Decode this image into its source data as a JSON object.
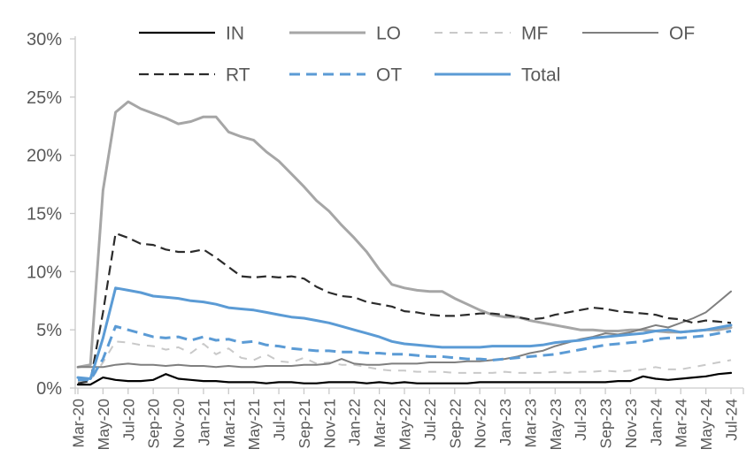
{
  "chart_data": {
    "type": "line",
    "title": "",
    "xlabel": "",
    "ylabel": "",
    "ylim": [
      0,
      30
    ],
    "ytick_labels": [
      "0%",
      "5%",
      "10%",
      "15%",
      "20%",
      "25%",
      "30%"
    ],
    "xtick_step": 2,
    "grid": false,
    "legend_position": "top",
    "colors": {
      "axis": "#c9c9c9",
      "text": "#595959"
    },
    "x": [
      "Mar-20",
      "Apr-20",
      "May-20",
      "Jun-20",
      "Jul-20",
      "Aug-20",
      "Sep-20",
      "Oct-20",
      "Nov-20",
      "Dec-20",
      "Jan-21",
      "Feb-21",
      "Mar-21",
      "Apr-21",
      "May-21",
      "Jun-21",
      "Jul-21",
      "Aug-21",
      "Sep-21",
      "Oct-21",
      "Nov-21",
      "Dec-21",
      "Jan-22",
      "Feb-22",
      "Mar-22",
      "Apr-22",
      "May-22",
      "Jun-22",
      "Jul-22",
      "Aug-22",
      "Sep-22",
      "Oct-22",
      "Nov-22",
      "Dec-22",
      "Jan-23",
      "Feb-23",
      "Mar-23",
      "Apr-23",
      "May-23",
      "Jun-23",
      "Jul-23",
      "Aug-23",
      "Sep-23",
      "Oct-23",
      "Nov-23",
      "Dec-23",
      "Jan-24",
      "Feb-24",
      "Mar-24",
      "Apr-24",
      "May-24",
      "Jun-24",
      "Jul-24"
    ],
    "series": [
      {
        "name": "IN",
        "color": "#000000",
        "width": 2.2,
        "dash": "",
        "values": [
          0.3,
          0.3,
          0.9,
          0.7,
          0.6,
          0.6,
          0.7,
          1.2,
          0.8,
          0.7,
          0.6,
          0.6,
          0.5,
          0.5,
          0.5,
          0.4,
          0.5,
          0.5,
          0.4,
          0.4,
          0.5,
          0.5,
          0.5,
          0.4,
          0.5,
          0.4,
          0.5,
          0.4,
          0.4,
          0.4,
          0.4,
          0.4,
          0.5,
          0.5,
          0.5,
          0.5,
          0.5,
          0.5,
          0.5,
          0.5,
          0.5,
          0.5,
          0.5,
          0.6,
          0.6,
          1.0,
          0.8,
          0.7,
          0.8,
          0.9,
          1.0,
          1.2,
          1.3
        ]
      },
      {
        "name": "LO",
        "color": "#a6a6a6",
        "width": 3,
        "dash": "",
        "values": [
          1.8,
          2.0,
          17.0,
          23.7,
          24.6,
          24.0,
          23.6,
          23.2,
          22.7,
          22.9,
          23.3,
          23.3,
          22.0,
          21.6,
          21.3,
          20.3,
          19.5,
          18.4,
          17.3,
          16.1,
          15.2,
          14.0,
          12.9,
          11.7,
          10.2,
          8.9,
          8.6,
          8.4,
          8.3,
          8.3,
          7.7,
          7.2,
          6.7,
          6.3,
          6.1,
          6.1,
          5.8,
          5.6,
          5.4,
          5.2,
          5.0,
          5.0,
          4.9,
          4.9,
          5.0,
          5.0,
          4.9,
          4.8,
          4.8,
          4.9,
          5.0,
          5.0,
          5.2
        ]
      },
      {
        "name": "MF",
        "color": "#c9c9c9",
        "width": 2,
        "dash": "9,8",
        "values": [
          0.6,
          0.7,
          2.2,
          4.0,
          3.9,
          3.7,
          3.6,
          3.3,
          3.5,
          3.0,
          3.8,
          2.9,
          3.4,
          2.6,
          2.4,
          2.9,
          2.3,
          2.2,
          2.6,
          2.1,
          2.2,
          2.0,
          2.0,
          1.8,
          1.6,
          1.5,
          1.5,
          1.4,
          1.4,
          1.4,
          1.3,
          1.3,
          1.3,
          1.3,
          1.4,
          1.3,
          1.3,
          1.3,
          1.4,
          1.3,
          1.4,
          1.4,
          1.5,
          1.4,
          1.5,
          1.6,
          1.8,
          1.6,
          1.6,
          1.8,
          2.0,
          2.2,
          2.4
        ]
      },
      {
        "name": "OF",
        "color": "#7f7f7f",
        "width": 2,
        "dash": "",
        "values": [
          1.8,
          1.8,
          1.8,
          2.0,
          2.1,
          2.0,
          2.0,
          1.9,
          2.0,
          1.9,
          1.9,
          1.8,
          1.9,
          1.8,
          1.8,
          1.9,
          1.9,
          1.9,
          2.0,
          2.0,
          2.1,
          2.5,
          2.1,
          2.0,
          2.0,
          2.1,
          2.1,
          2.1,
          2.2,
          2.2,
          2.2,
          2.3,
          2.3,
          2.4,
          2.5,
          2.7,
          3.0,
          3.2,
          3.6,
          3.9,
          4.2,
          4.4,
          4.7,
          4.6,
          4.8,
          5.1,
          5.4,
          5.2,
          5.6,
          6.0,
          6.5,
          7.4,
          8.3
        ]
      },
      {
        "name": "RT",
        "color": "#2b2b2b",
        "width": 2.2,
        "dash": "11,6",
        "values": [
          0.4,
          0.6,
          6.5,
          13.3,
          12.9,
          12.4,
          12.3,
          11.9,
          11.7,
          11.7,
          11.9,
          11.2,
          10.4,
          9.6,
          9.5,
          9.6,
          9.5,
          9.6,
          9.4,
          8.7,
          8.2,
          7.9,
          7.8,
          7.4,
          7.2,
          7.0,
          6.6,
          6.5,
          6.3,
          6.2,
          6.2,
          6.3,
          6.4,
          6.4,
          6.3,
          6.1,
          5.9,
          6.0,
          6.3,
          6.5,
          6.7,
          6.9,
          6.8,
          6.6,
          6.5,
          6.4,
          6.3,
          6.0,
          5.9,
          5.6,
          5.8,
          5.7,
          5.6
        ]
      },
      {
        "name": "OT",
        "color": "#5b9bd5",
        "width": 3,
        "dash": "12,7",
        "values": [
          0.7,
          0.7,
          2.5,
          5.3,
          5.0,
          4.7,
          4.4,
          4.3,
          4.4,
          4.1,
          4.4,
          4.1,
          4.2,
          3.9,
          4.0,
          3.7,
          3.6,
          3.4,
          3.3,
          3.2,
          3.2,
          3.1,
          3.1,
          3.0,
          3.0,
          2.9,
          2.9,
          2.8,
          2.7,
          2.7,
          2.6,
          2.5,
          2.5,
          2.4,
          2.5,
          2.6,
          2.7,
          2.8,
          2.9,
          3.1,
          3.3,
          3.5,
          3.7,
          3.8,
          3.9,
          4.0,
          4.2,
          4.3,
          4.3,
          4.4,
          4.5,
          4.7,
          4.9
        ]
      },
      {
        "name": "Total",
        "color": "#5b9bd5",
        "width": 3,
        "dash": "",
        "values": [
          0.9,
          0.8,
          4.3,
          8.6,
          8.4,
          8.2,
          7.9,
          7.8,
          7.7,
          7.5,
          7.4,
          7.2,
          6.9,
          6.8,
          6.7,
          6.5,
          6.3,
          6.1,
          6.0,
          5.8,
          5.6,
          5.3,
          5.0,
          4.7,
          4.4,
          4.0,
          3.8,
          3.7,
          3.6,
          3.5,
          3.5,
          3.5,
          3.5,
          3.6,
          3.6,
          3.6,
          3.6,
          3.7,
          3.9,
          4.0,
          4.1,
          4.3,
          4.4,
          4.5,
          4.6,
          4.7,
          4.9,
          5.0,
          4.8,
          4.9,
          5.0,
          5.2,
          5.4
        ]
      }
    ],
    "legend": {
      "rows": [
        [
          "IN",
          "LO",
          "MF",
          "OF"
        ],
        [
          "RT",
          "OT",
          "Total"
        ]
      ]
    }
  }
}
